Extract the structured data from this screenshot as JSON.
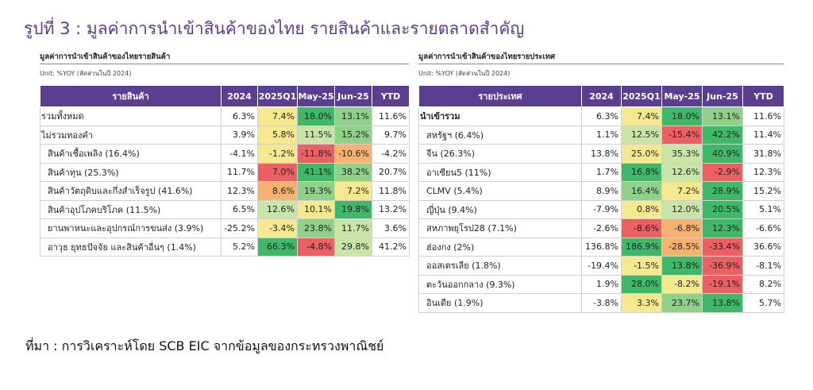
{
  "title": "รูปที่ 3 : มูลค่าการนำเข้าสินค้าของไทย รายสินค้าและรายตลาดสำคัญ",
  "source": "ที่มา : การวิเคราะห์โดย SCB EIC จากข้อมูลของกระทรวงพาณิชย์",
  "colors": {
    "header": "#5a3e8f",
    "strong_green": "#3fb86a",
    "green": "#8fd08a",
    "light_green": "#c8e4a8",
    "yellow": "#f5e88e",
    "orange": "#f6b26e",
    "red": "#ec5f63"
  },
  "left_table": {
    "title": "มูลค่าการนำเข้าสินค้าของไทยรายสินค้า",
    "unit": "Unit: %YOY (สัดส่วนในปี 2024)",
    "headers": [
      "รายสินค้า",
      "2024",
      "2025Q1",
      "May-25",
      "Jun-25",
      "YTD"
    ],
    "rows": [
      {
        "label": "รวมทั้งหมด",
        "indent": false,
        "bold": false,
        "cells": [
          {
            "v": "6.3%",
            "c": "none"
          },
          {
            "v": "7.4%",
            "c": "yellow"
          },
          {
            "v": "18.0%",
            "c": "strong_green"
          },
          {
            "v": "13.1%",
            "c": "green"
          },
          {
            "v": "11.6%",
            "c": "none"
          }
        ]
      },
      {
        "label": "ไม่รวมทองคำ",
        "indent": false,
        "bold": false,
        "cells": [
          {
            "v": "3.9%",
            "c": "none"
          },
          {
            "v": "5.8%",
            "c": "yellow"
          },
          {
            "v": "11.5%",
            "c": "light_green"
          },
          {
            "v": "15.2%",
            "c": "green"
          },
          {
            "v": "9.7%",
            "c": "none"
          }
        ]
      },
      {
        "label": "สินค้าเชื้อเพลิง (16.4%)",
        "indent": true,
        "bold": false,
        "cells": [
          {
            "v": "-4.1%",
            "c": "none"
          },
          {
            "v": "-1.2%",
            "c": "yellow"
          },
          {
            "v": "-11.8%",
            "c": "red"
          },
          {
            "v": "-10.6%",
            "c": "orange"
          },
          {
            "v": "-4.2%",
            "c": "none"
          }
        ]
      },
      {
        "label": "สินค้าทุน (25.3%)",
        "indent": true,
        "bold": false,
        "cells": [
          {
            "v": "11.7%",
            "c": "none"
          },
          {
            "v": "7.0%",
            "c": "red"
          },
          {
            "v": "41.1%",
            "c": "strong_green"
          },
          {
            "v": "38.2%",
            "c": "green"
          },
          {
            "v": "20.7%",
            "c": "none"
          }
        ]
      },
      {
        "label": "สินค้าวัตถุดิบและกึ่งสำเร็จรูป (41.6%)",
        "indent": true,
        "bold": false,
        "cells": [
          {
            "v": "12.3%",
            "c": "none"
          },
          {
            "v": "8.6%",
            "c": "orange"
          },
          {
            "v": "19.3%",
            "c": "green"
          },
          {
            "v": "7.2%",
            "c": "yellow"
          },
          {
            "v": "11.8%",
            "c": "none"
          }
        ]
      },
      {
        "label": "สินค้าอุปโภคบริโภค (11.5%)",
        "indent": true,
        "bold": false,
        "cells": [
          {
            "v": "6.5%",
            "c": "none"
          },
          {
            "v": "12.6%",
            "c": "light_green"
          },
          {
            "v": "10.1%",
            "c": "yellow"
          },
          {
            "v": "19.8%",
            "c": "strong_green"
          },
          {
            "v": "13.2%",
            "c": "none"
          }
        ]
      },
      {
        "label": "ยานพาหนะและอุปกรณ์การขนส่ง (3.9%)",
        "indent": true,
        "bold": false,
        "cells": [
          {
            "v": "-25.2%",
            "c": "none"
          },
          {
            "v": "-3.4%",
            "c": "yellow"
          },
          {
            "v": "23.8%",
            "c": "green"
          },
          {
            "v": "11.7%",
            "c": "light_green"
          },
          {
            "v": "3.6%",
            "c": "none"
          }
        ]
      },
      {
        "label": "อาวุธ ยุทธปัจจัย และสินค้าอื่นๆ (1.4%)",
        "indent": true,
        "bold": false,
        "cells": [
          {
            "v": "5.2%",
            "c": "none"
          },
          {
            "v": "66.3%",
            "c": "strong_green"
          },
          {
            "v": "-4.8%",
            "c": "red"
          },
          {
            "v": "29.8%",
            "c": "light_green"
          },
          {
            "v": "41.2%",
            "c": "none"
          }
        ]
      }
    ]
  },
  "right_table": {
    "title": "มูลค่าการนำเข้าสินค้าของไทยรายประเทศ",
    "unit": "Unit: %YOY (สัดส่วนในปี 2024)",
    "headers": [
      "รายประเทศ",
      "2024",
      "2025Q1",
      "May-25",
      "Jun-25",
      "YTD"
    ],
    "rows": [
      {
        "label": "นำเข้ารวม",
        "indent": false,
        "bold": true,
        "cells": [
          {
            "v": "6.3%",
            "c": "none"
          },
          {
            "v": "7.4%",
            "c": "yellow"
          },
          {
            "v": "18.0%",
            "c": "strong_green"
          },
          {
            "v": "13.1%",
            "c": "green"
          },
          {
            "v": "11.6%",
            "c": "none"
          }
        ]
      },
      {
        "label": "สหรัฐฯ (6.4%)",
        "indent": true,
        "bold": false,
        "cells": [
          {
            "v": "1.1%",
            "c": "none"
          },
          {
            "v": "12.5%",
            "c": "light_green"
          },
          {
            "v": "-15.4%",
            "c": "red"
          },
          {
            "v": "42.2%",
            "c": "strong_green"
          },
          {
            "v": "11.4%",
            "c": "none"
          }
        ]
      },
      {
        "label": "จีน (26.3%)",
        "indent": true,
        "bold": false,
        "cells": [
          {
            "v": "13.8%",
            "c": "none"
          },
          {
            "v": "25.0%",
            "c": "yellow"
          },
          {
            "v": "35.3%",
            "c": "light_green"
          },
          {
            "v": "40.9%",
            "c": "strong_green"
          },
          {
            "v": "31.8%",
            "c": "none"
          }
        ]
      },
      {
        "label": "อาเซียน5 (11%)",
        "indent": true,
        "bold": false,
        "cells": [
          {
            "v": "1.7%",
            "c": "none"
          },
          {
            "v": "16.8%",
            "c": "strong_green"
          },
          {
            "v": "12.6%",
            "c": "light_green"
          },
          {
            "v": "-2.9%",
            "c": "red"
          },
          {
            "v": "12.3%",
            "c": "none"
          }
        ]
      },
      {
        "label": "CLMV (5.4%)",
        "indent": true,
        "bold": false,
        "cells": [
          {
            "v": "8.9%",
            "c": "none"
          },
          {
            "v": "16.4%",
            "c": "green"
          },
          {
            "v": "7.2%",
            "c": "yellow"
          },
          {
            "v": "28.9%",
            "c": "strong_green"
          },
          {
            "v": "15.2%",
            "c": "none"
          }
        ]
      },
      {
        "label": "ญี่ปุ่น (9.4%)",
        "indent": true,
        "bold": false,
        "cells": [
          {
            "v": "-7.9%",
            "c": "none"
          },
          {
            "v": "0.8%",
            "c": "yellow"
          },
          {
            "v": "12.0%",
            "c": "light_green"
          },
          {
            "v": "20.5%",
            "c": "strong_green"
          },
          {
            "v": "5.1%",
            "c": "none"
          }
        ]
      },
      {
        "label": "สหภาพยุโรป28 (7.1%)",
        "indent": true,
        "bold": false,
        "cells": [
          {
            "v": "-2.6%",
            "c": "none"
          },
          {
            "v": "-8.6%",
            "c": "red"
          },
          {
            "v": "-6.8%",
            "c": "orange"
          },
          {
            "v": "12.3%",
            "c": "strong_green"
          },
          {
            "v": "-6.6%",
            "c": "none"
          }
        ]
      },
      {
        "label": "ฮ่องกง (2%)",
        "indent": true,
        "bold": false,
        "cells": [
          {
            "v": "136.8%",
            "c": "none"
          },
          {
            "v": "186.9%",
            "c": "strong_green"
          },
          {
            "v": "-28.5%",
            "c": "orange"
          },
          {
            "v": "-33.4%",
            "c": "red"
          },
          {
            "v": "36.6%",
            "c": "none"
          }
        ]
      },
      {
        "label": "ออสเตรเลีย (1.8%)",
        "indent": true,
        "bold": false,
        "cells": [
          {
            "v": "-19.4%",
            "c": "none"
          },
          {
            "v": "-1.5%",
            "c": "yellow"
          },
          {
            "v": "13.8%",
            "c": "strong_green"
          },
          {
            "v": "-36.9%",
            "c": "red"
          },
          {
            "v": "-8.1%",
            "c": "none"
          }
        ]
      },
      {
        "label": "ตะวันออกกลาง (9.3%)",
        "indent": true,
        "bold": false,
        "cells": [
          {
            "v": "1.9%",
            "c": "none"
          },
          {
            "v": "28.0%",
            "c": "strong_green"
          },
          {
            "v": "-8.2%",
            "c": "yellow"
          },
          {
            "v": "-19.1%",
            "c": "red"
          },
          {
            "v": "8.2%",
            "c": "none"
          }
        ]
      },
      {
        "label": "อินเดีย (1.9%)",
        "indent": true,
        "bold": false,
        "cells": [
          {
            "v": "-3.8%",
            "c": "none"
          },
          {
            "v": "3.3%",
            "c": "yellow"
          },
          {
            "v": "23.7%",
            "c": "green"
          },
          {
            "v": "13.8%",
            "c": "strong_green"
          },
          {
            "v": "5.7%",
            "c": "none"
          }
        ]
      }
    ]
  }
}
